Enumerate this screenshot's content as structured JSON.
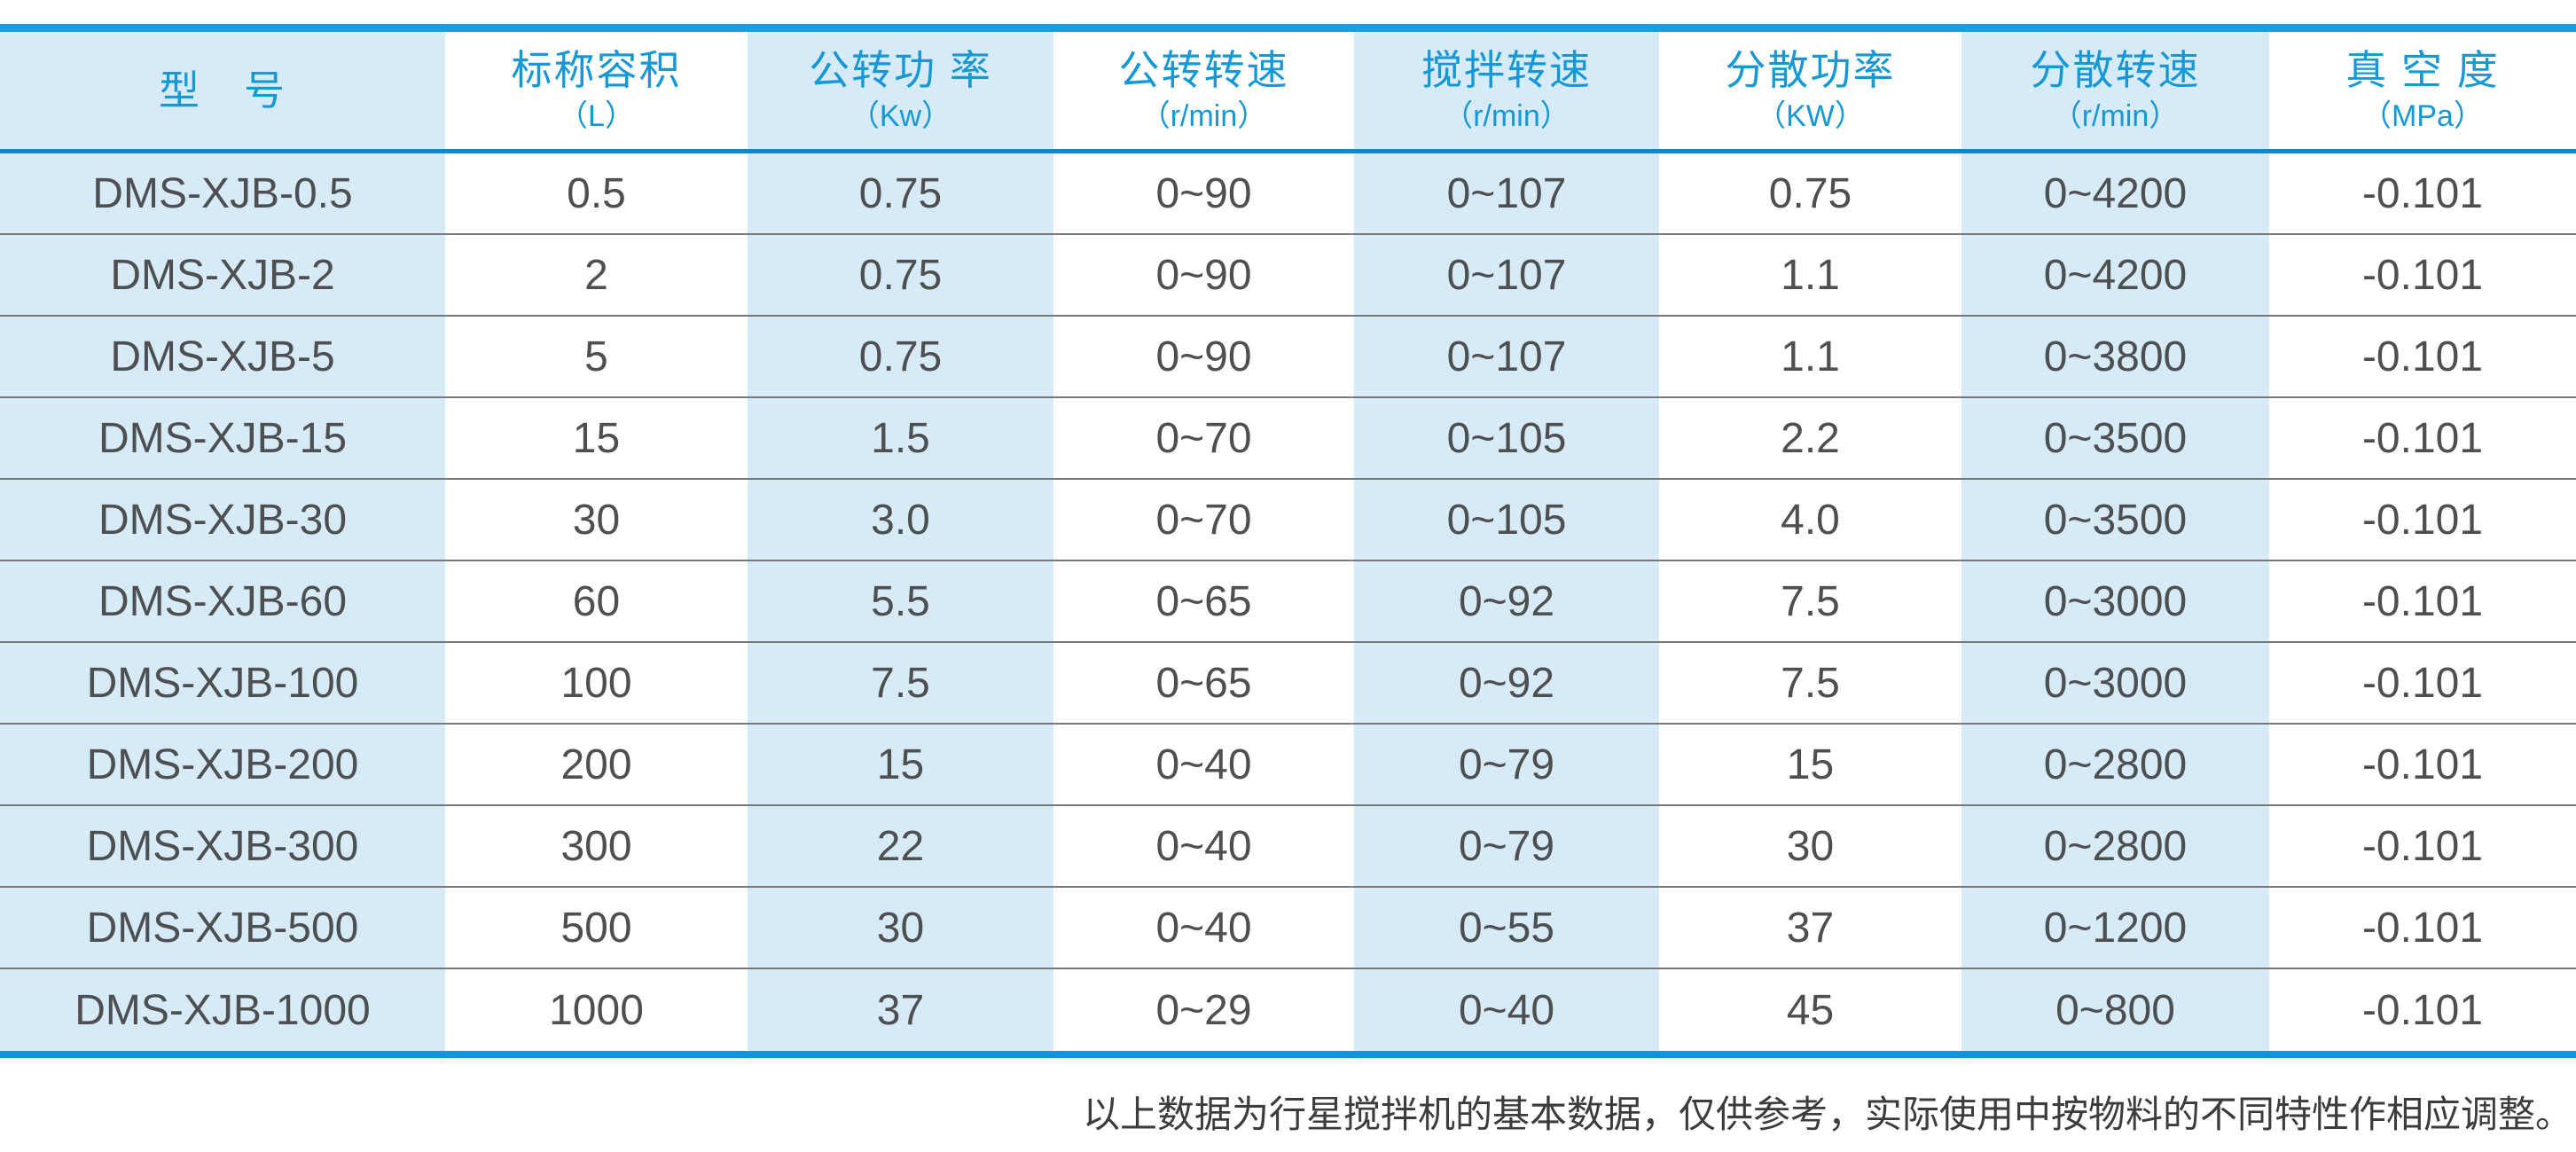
{
  "table": {
    "columns": [
      {
        "title": "型　号",
        "unit": ""
      },
      {
        "title": "标称容积",
        "unit": "（L）"
      },
      {
        "title": "公转功 率",
        "unit": "（Kw）"
      },
      {
        "title": "公转转速",
        "unit": "（r/min）"
      },
      {
        "title": "搅拌转速",
        "unit": "（r/min）"
      },
      {
        "title": "分散功率",
        "unit": "（KW）"
      },
      {
        "title": "分散转速",
        "unit": "（r/min）"
      },
      {
        "title": "真 空 度",
        "unit": "（MPa）"
      }
    ],
    "rows": [
      [
        "DMS-XJB-0.5",
        "0.5",
        "0.75",
        "0~90",
        "0~107",
        "0.75",
        "0~4200",
        "-0.101"
      ],
      [
        "DMS-XJB-2",
        "2",
        "0.75",
        "0~90",
        "0~107",
        "1.1",
        "0~4200",
        "-0.101"
      ],
      [
        "DMS-XJB-5",
        "5",
        "0.75",
        "0~90",
        "0~107",
        "1.1",
        "0~3800",
        "-0.101"
      ],
      [
        "DMS-XJB-15",
        "15",
        "1.5",
        "0~70",
        "0~105",
        "2.2",
        "0~3500",
        "-0.101"
      ],
      [
        "DMS-XJB-30",
        "30",
        "3.0",
        "0~70",
        "0~105",
        "4.0",
        "0~3500",
        "-0.101"
      ],
      [
        "DMS-XJB-60",
        "60",
        "5.5",
        "0~65",
        "0~92",
        "7.5",
        "0~3000",
        "-0.101"
      ],
      [
        "DMS-XJB-100",
        "100",
        "7.5",
        "0~65",
        "0~92",
        "7.5",
        "0~3000",
        "-0.101"
      ],
      [
        "DMS-XJB-200",
        "200",
        "15",
        "0~40",
        "0~79",
        "15",
        "0~2800",
        "-0.101"
      ],
      [
        "DMS-XJB-300",
        "300",
        "22",
        "0~40",
        "0~79",
        "30",
        "0~2800",
        "-0.101"
      ],
      [
        "DMS-XJB-500",
        "500",
        "30",
        "0~40",
        "0~55",
        "37",
        "0~1200",
        "-0.101"
      ],
      [
        "DMS-XJB-1000",
        "1000",
        "37",
        "0~29",
        "0~40",
        "45",
        "0~800",
        "-0.101"
      ]
    ]
  },
  "footnote": "以上数据为行星搅拌机的基本数据，仅供参考，实际使用中按物料的不同特性作相应调整。",
  "colors": {
    "accent_blue": "#1697d6",
    "top_border": "#1b9de2",
    "header_divider": "#1286c9",
    "bottom_border": "#1193dc",
    "band_blue": "#d6eaf8",
    "body_text": "#4e4f51",
    "row_separator": "#77787a",
    "footnote_text": "#3c3c3c"
  }
}
